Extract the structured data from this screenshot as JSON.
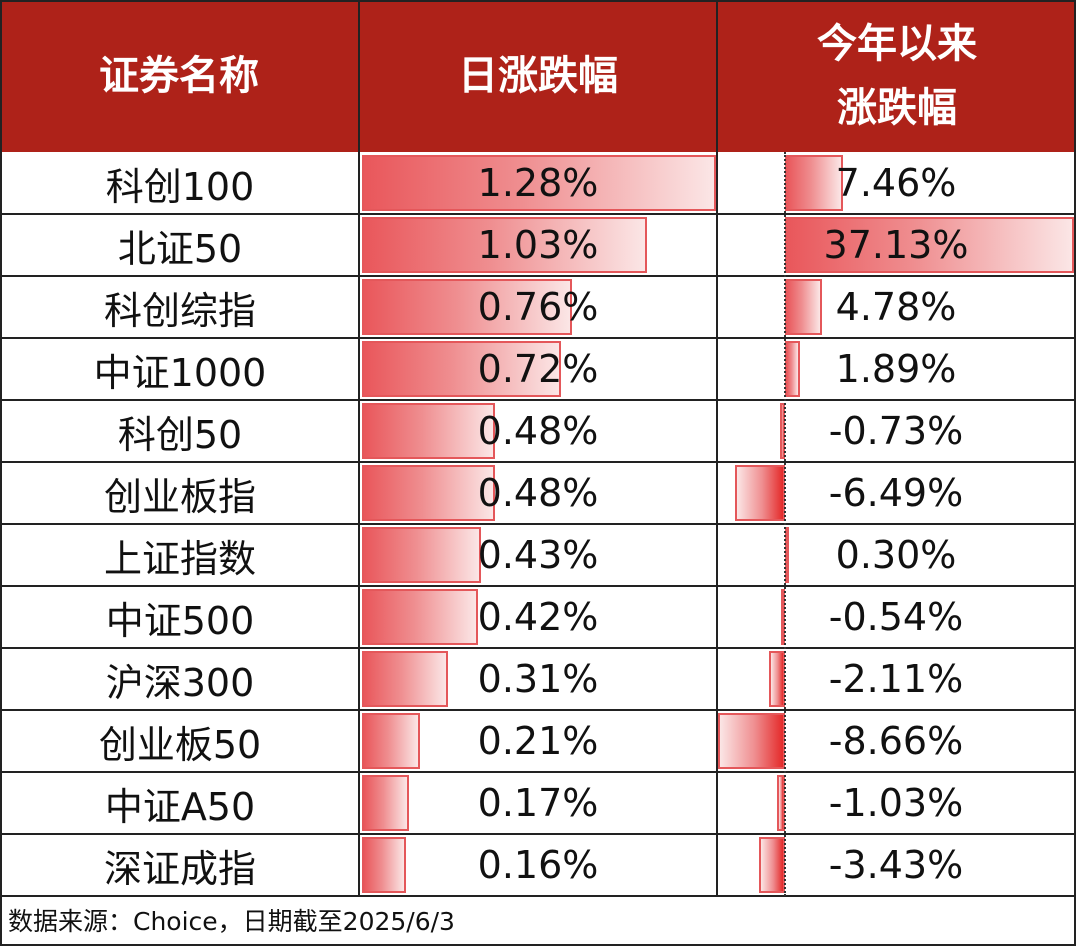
{
  "headers": {
    "col1": "证券名称",
    "col2": "日涨跌幅",
    "col3_line1": "今年以来",
    "col3_line2": "涨跌幅"
  },
  "source_note": "数据来源：Choice，日期截至2025/6/3",
  "colors": {
    "header_bg": "#ae2219",
    "bar_red": "#e9575b",
    "bar_border": "#e4575a"
  },
  "chart_data": {
    "type": "table",
    "columns": [
      "证券名称",
      "日涨跌幅",
      "今年以来涨跌幅"
    ],
    "rows": [
      {
        "name": "科创100",
        "daily": 1.28,
        "daily_label": "1.28%",
        "ytd": 7.46,
        "ytd_label": "7.46%"
      },
      {
        "name": "北证50",
        "daily": 1.03,
        "daily_label": "1.03%",
        "ytd": 37.13,
        "ytd_label": "37.13%"
      },
      {
        "name": "科创综指",
        "daily": 0.76,
        "daily_label": "0.76%",
        "ytd": 4.78,
        "ytd_label": "4.78%"
      },
      {
        "name": "中证1000",
        "daily": 0.72,
        "daily_label": "0.72%",
        "ytd": 1.89,
        "ytd_label": "1.89%"
      },
      {
        "name": "科创50",
        "daily": 0.48,
        "daily_label": "0.48%",
        "ytd": -0.73,
        "ytd_label": "-0.73%"
      },
      {
        "name": "创业板指",
        "daily": 0.48,
        "daily_label": "0.48%",
        "ytd": -6.49,
        "ytd_label": "-6.49%"
      },
      {
        "name": "上证指数",
        "daily": 0.43,
        "daily_label": "0.43%",
        "ytd": 0.3,
        "ytd_label": "0.30%"
      },
      {
        "name": "中证500",
        "daily": 0.42,
        "daily_label": "0.42%",
        "ytd": -0.54,
        "ytd_label": "-0.54%"
      },
      {
        "name": "沪深300",
        "daily": 0.31,
        "daily_label": "0.31%",
        "ytd": -2.11,
        "ytd_label": "-2.11%"
      },
      {
        "name": "创业板50",
        "daily": 0.21,
        "daily_label": "0.21%",
        "ytd": -8.66,
        "ytd_label": "-8.66%"
      },
      {
        "name": "中证A50",
        "daily": 0.17,
        "daily_label": "0.17%",
        "ytd": -1.03,
        "ytd_label": "-1.03%"
      },
      {
        "name": "深证成指",
        "daily": 0.16,
        "daily_label": "0.16%",
        "ytd": -3.43,
        "ytd_label": "-3.43%"
      }
    ]
  }
}
